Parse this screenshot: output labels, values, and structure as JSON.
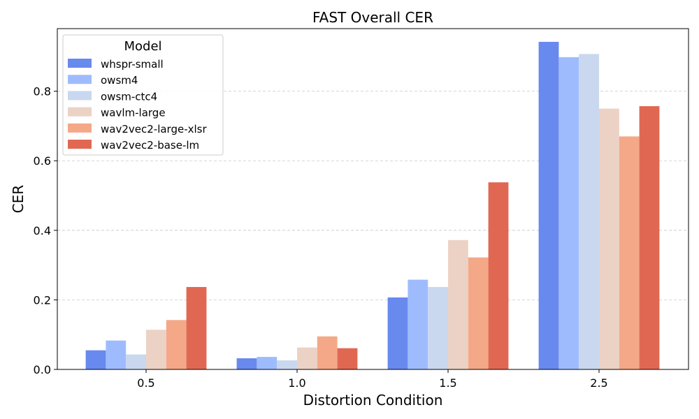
{
  "chart_data": {
    "type": "bar",
    "title": "FAST Overall CER",
    "xlabel": "Distortion Condition",
    "ylabel": "CER",
    "categories": [
      "0.5",
      "1.0",
      "1.5",
      "2.5"
    ],
    "ylim": [
      0,
      0.98
    ],
    "yticks": [
      "0.0",
      "0.2",
      "0.4",
      "0.6",
      "0.8"
    ],
    "grid": "y-dashed",
    "legend_title": "Model",
    "legend_position": "top-left",
    "series": [
      {
        "name": "whspr-small",
        "color": "#6889ee",
        "values": [
          0.055,
          0.032,
          0.207,
          0.942
        ]
      },
      {
        "name": "owsm4",
        "color": "#9ebcfd",
        "values": [
          0.083,
          0.036,
          0.258,
          0.898
        ]
      },
      {
        "name": "owsm-ctc4",
        "color": "#c9d7ef",
        "values": [
          0.043,
          0.026,
          0.237,
          0.907
        ]
      },
      {
        "name": "wavlm-large",
        "color": "#ecd2c5",
        "values": [
          0.114,
          0.063,
          0.372,
          0.75
        ]
      },
      {
        "name": "wav2vec2-large-xlsr",
        "color": "#f4a888",
        "values": [
          0.142,
          0.095,
          0.322,
          0.67
        ]
      },
      {
        "name": "wav2vec2-base-lm",
        "color": "#e06853",
        "values": [
          0.237,
          0.061,
          0.538,
          0.757
        ]
      }
    ]
  }
}
